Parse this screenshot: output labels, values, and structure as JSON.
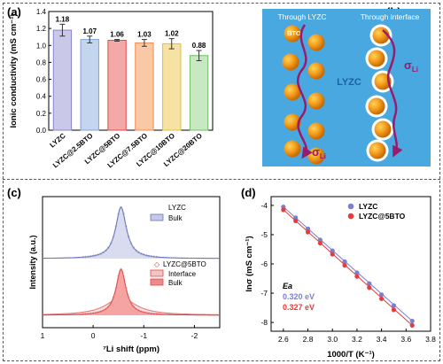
{
  "panels": {
    "a": {
      "label": "(a)"
    },
    "b": {
      "label": "(b)"
    },
    "c": {
      "label": "(c)"
    },
    "d": {
      "label": "(d)"
    }
  },
  "chart_data": [
    {
      "type": "bar",
      "title": "",
      "xlabel": "",
      "ylabel": "Ionic conductivity (mS cm⁻¹)",
      "ylim": [
        0.0,
        1.4
      ],
      "yticks": [
        "0.0",
        "0.2",
        "0.4",
        "0.6",
        "0.8",
        "1.0",
        "1.2",
        "1.4"
      ],
      "categories": [
        "LYZC",
        "LYZC@2.5BTO",
        "LYZC@5BTO",
        "LYZC@7.5BTO",
        "LYZC@10BTO",
        "LYZC@20BTO"
      ],
      "values": [
        1.18,
        1.07,
        1.06,
        1.03,
        1.02,
        0.88
      ],
      "value_labels": [
        "1.18",
        "1.07",
        "1.06",
        "1.03",
        "1.02",
        "0.88"
      ],
      "errors": [
        0.07,
        0.04,
        0.01,
        0.04,
        0.06,
        0.06
      ],
      "colors": [
        "#c9c8e8",
        "#c4d6ef",
        "#f4a9a9",
        "#f9c9a5",
        "#f6e2a3",
        "#c8e8c2"
      ],
      "edge_colors": [
        "#8a86c9",
        "#7fa3d6",
        "#e04848",
        "#f08c4f",
        "#e8bd3a",
        "#6fbd62"
      ]
    },
    {
      "type": "line",
      "title": "",
      "xlabel": "⁷Li shift (ppm)",
      "ylabel": "Intensity (a.u.)",
      "xlim": [
        1,
        -2.5
      ],
      "xticks": [
        "1",
        "0",
        "-1",
        "-2"
      ],
      "series": [
        {
          "name": "LYZC",
          "color": "#9ba0c9"
        },
        {
          "name": "Bulk",
          "color": "#6b74b8"
        },
        {
          "name": "LYZC@5BTO",
          "color": "#e58a8a"
        },
        {
          "name": "Interface",
          "color": "#e04848"
        },
        {
          "name": "Bulk",
          "color": "#e04848"
        }
      ],
      "peak_position": -0.55
    },
    {
      "type": "line",
      "title": "",
      "xlabel": "1000/T (K⁻¹)",
      "ylabel": "lnσ (mS cm⁻¹)",
      "xlim": [
        2.5,
        3.8
      ],
      "ylim": [
        -8.3,
        -3.7
      ],
      "xticks": [
        "2.6",
        "2.8",
        "3.0",
        "3.2",
        "3.4",
        "3.6",
        "3.8"
      ],
      "yticks": [
        "-4",
        "-5",
        "-6",
        "-7",
        "-8"
      ],
      "x": [
        2.6,
        2.7,
        2.8,
        2.9,
        3.0,
        3.1,
        3.2,
        3.3,
        3.4,
        3.5,
        3.65
      ],
      "series": [
        {
          "name": "LYZC",
          "color": "#7b7fd0",
          "values": [
            -4.05,
            -4.42,
            -4.8,
            -5.18,
            -5.55,
            -5.92,
            -6.3,
            -6.67,
            -7.05,
            -7.42,
            -7.95
          ]
        },
        {
          "name": "LYZC@5BTO",
          "color": "#e83c3c",
          "values": [
            -4.15,
            -4.53,
            -4.91,
            -5.29,
            -5.67,
            -6.05,
            -6.43,
            -6.81,
            -7.19,
            -7.57,
            -8.1
          ]
        }
      ],
      "annotation": {
        "title": "Ea",
        "values": [
          "0.320 eV",
          "0.327 eV"
        ]
      }
    }
  ],
  "schematic": {
    "left_title": "Through LYZC",
    "right_title": "Through interface",
    "particle_label": "BTO",
    "matrix_label": "LYZC",
    "sigma": "σ",
    "sigma_sub": "Li",
    "background": "#4aa8e0"
  }
}
